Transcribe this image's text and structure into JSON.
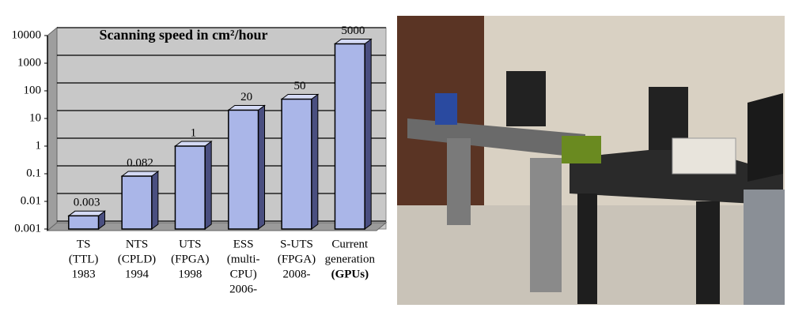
{
  "chart_data": {
    "type": "bar",
    "title": "Scanning speed in cm²/hour",
    "categories": [
      [
        "TS",
        "(TTL)",
        "1983"
      ],
      [
        "NTS",
        "(CPLD)",
        "1994"
      ],
      [
        "UTS",
        "(FPGA)",
        "1998"
      ],
      [
        "ESS",
        "(multi-",
        "CPU)",
        "2006-"
      ],
      [
        "S-UTS",
        "(FPGA)",
        "2008-"
      ],
      [
        "Current",
        "generation",
        "(GPUs)"
      ]
    ],
    "values": [
      0.003,
      0.082,
      1,
      20,
      50,
      5000
    ],
    "color": "#aab6e8",
    "ylim": [
      0.001,
      10000
    ],
    "yticks": [
      0.001,
      0.01,
      0.1,
      1,
      10,
      100,
      1000,
      10000
    ],
    "log": true,
    "grid": true
  }
}
